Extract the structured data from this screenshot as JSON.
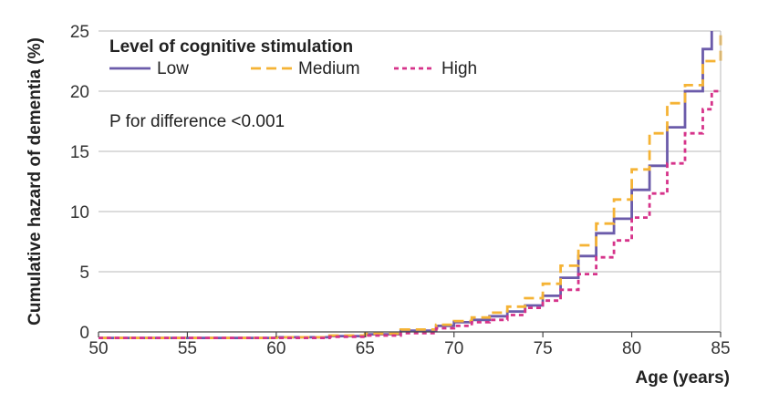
{
  "chart_data": {
    "type": "line",
    "title": "",
    "xlabel": "Age (years)",
    "ylabel": "Cumulative hazard of dementia (%)",
    "xlim": [
      50,
      85
    ],
    "ylim": [
      0,
      25
    ],
    "xticks": [
      50,
      55,
      60,
      65,
      70,
      75,
      80,
      85
    ],
    "yticks": [
      0,
      5,
      10,
      15,
      20,
      25
    ],
    "xtick_labels": [
      "50",
      "55",
      "60",
      "65",
      "70",
      "75",
      "80",
      "85"
    ],
    "ytick_labels": [
      "0",
      "5",
      "10",
      "15",
      "20",
      "25"
    ],
    "grid": "horizontal",
    "legend": {
      "title": "Level of cognitive stimulation",
      "position": "top-left",
      "entries": [
        "Low",
        "Medium",
        "High"
      ]
    },
    "annotation": "P for difference <0.001",
    "series": [
      {
        "name": "Low",
        "color": "#6B5BAA",
        "dash": "solid",
        "points": [
          [
            50,
            -0.5
          ],
          [
            60,
            -0.45
          ],
          [
            63,
            -0.35
          ],
          [
            65,
            -0.2
          ],
          [
            67,
            0.1
          ],
          [
            69,
            0.5
          ],
          [
            70,
            0.8
          ],
          [
            71,
            1.0
          ],
          [
            72,
            1.3
          ],
          [
            73,
            1.7
          ],
          [
            74,
            2.2
          ],
          [
            75,
            3.0
          ],
          [
            76,
            4.5
          ],
          [
            77,
            6.3
          ],
          [
            78,
            8.2
          ],
          [
            79,
            9.4
          ],
          [
            80,
            11.8
          ],
          [
            81,
            13.8
          ],
          [
            82,
            17.0
          ],
          [
            83,
            20.0
          ],
          [
            84,
            23.5
          ],
          [
            84.5,
            25.0
          ]
        ]
      },
      {
        "name": "Medium",
        "color": "#F5B335",
        "dash": "dashed",
        "points": [
          [
            50,
            -0.5
          ],
          [
            60,
            -0.45
          ],
          [
            63,
            -0.3
          ],
          [
            65,
            -0.15
          ],
          [
            67,
            0.2
          ],
          [
            69,
            0.6
          ],
          [
            70,
            0.9
          ],
          [
            71,
            1.2
          ],
          [
            72,
            1.6
          ],
          [
            73,
            2.1
          ],
          [
            74,
            2.8
          ],
          [
            75,
            4.0
          ],
          [
            76,
            5.5
          ],
          [
            77,
            7.2
          ],
          [
            78,
            9.0
          ],
          [
            79,
            11.0
          ],
          [
            80,
            13.5
          ],
          [
            81,
            16.5
          ],
          [
            82,
            19.0
          ],
          [
            83,
            20.5
          ],
          [
            84,
            22.5
          ],
          [
            85,
            25.0
          ]
        ]
      },
      {
        "name": "High",
        "color": "#D6338A",
        "dash": "dotted",
        "points": [
          [
            50,
            -0.5
          ],
          [
            60,
            -0.5
          ],
          [
            63,
            -0.4
          ],
          [
            65,
            -0.3
          ],
          [
            67,
            -0.1
          ],
          [
            69,
            0.3
          ],
          [
            70,
            0.5
          ],
          [
            71,
            0.8
          ],
          [
            72,
            1.0
          ],
          [
            73,
            1.4
          ],
          [
            74,
            2.0
          ],
          [
            75,
            2.6
          ],
          [
            76,
            3.5
          ],
          [
            77,
            4.8
          ],
          [
            78,
            6.2
          ],
          [
            79,
            7.6
          ],
          [
            80,
            9.5
          ],
          [
            81,
            11.5
          ],
          [
            82,
            14.0
          ],
          [
            83,
            16.5
          ],
          [
            84,
            18.5
          ],
          [
            84.5,
            20.0
          ],
          [
            85,
            20.0
          ]
        ]
      }
    ]
  }
}
